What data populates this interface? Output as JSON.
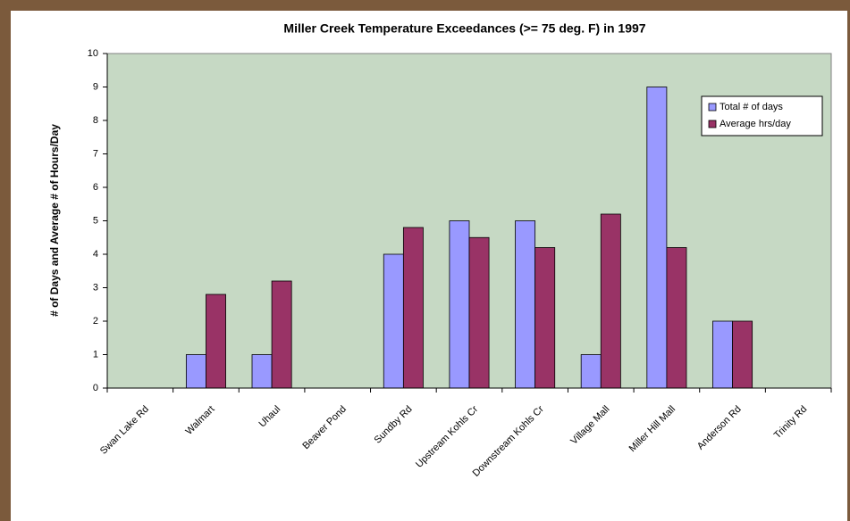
{
  "chart_data": {
    "type": "bar",
    "title": "Miller Creek Temperature Exceedances (>= 75 deg. F) in 1997",
    "y_label": "# of Days and Average # of Hours/Day",
    "categories": [
      "Swan Lake Rd",
      "Walmart",
      "Uhaul",
      "Beaver Pond",
      "Sundby Rd",
      "Upstream Kohls Cr",
      "Downstream Kohls Cr",
      "Village Mall",
      "Miller Hill Mall",
      "Anderson Rd",
      "Trinity Rd"
    ],
    "series": [
      {
        "name": "Total # of days",
        "color": "#9999ff",
        "values": [
          0,
          1,
          1,
          0,
          4,
          5,
          5,
          1,
          9,
          2,
          0
        ]
      },
      {
        "name": "Average hrs/day",
        "color": "#993366",
        "values": [
          0,
          2.8,
          3.2,
          0,
          4.8,
          4.5,
          4.2,
          5.2,
          4.2,
          2.0,
          0
        ]
      }
    ],
    "ylim": [
      0,
      10
    ],
    "yticks": [
      0,
      1,
      2,
      3,
      4,
      5,
      6,
      7,
      8,
      9,
      10
    ],
    "legend": "upper right",
    "plot_background": "#c6d9c4"
  }
}
